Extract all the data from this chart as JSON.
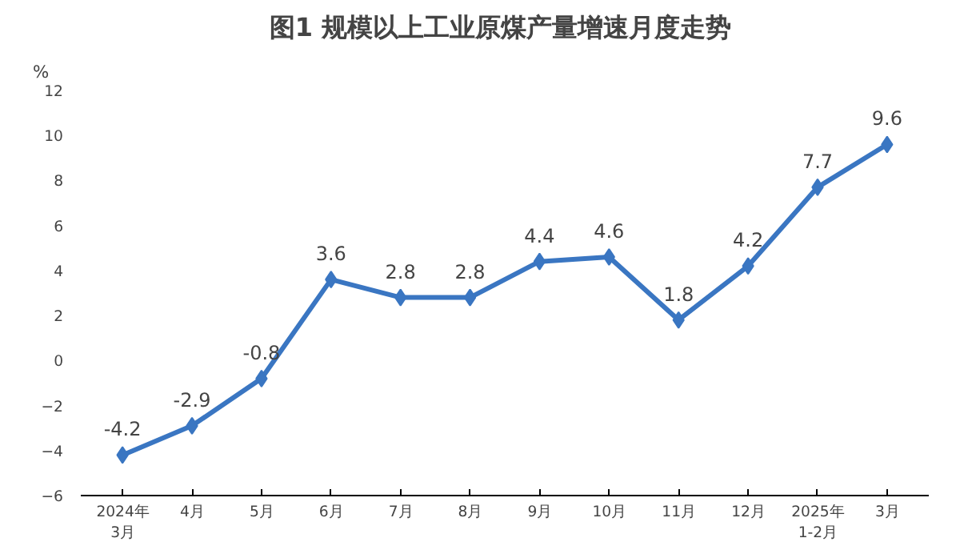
{
  "chart_data": {
    "type": "line",
    "title": "图1  规模以上工业原煤产量增速月度走势",
    "ylabel": "%",
    "categories": [
      "2024年\n3月",
      "4月",
      "5月",
      "6月",
      "7月",
      "8月",
      "9月",
      "10月",
      "11月",
      "12月",
      "2025年\n1-2月",
      "3月"
    ],
    "series": [
      {
        "color": "#3a76c2",
        "values": [
          -4.2,
          -2.9,
          -0.8,
          3.6,
          2.8,
          2.8,
          4.4,
          4.6,
          1.8,
          4.2,
          7.7,
          9.6
        ]
      }
    ],
    "ylim": [
      -6,
      12
    ],
    "yticks": [
      -6,
      -4,
      -2,
      0,
      2,
      4,
      6,
      8,
      10,
      12
    ],
    "marker": "diamond",
    "data_labels": true,
    "grid": false
  }
}
